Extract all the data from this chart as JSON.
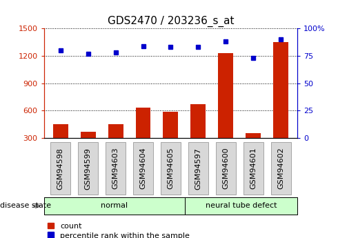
{
  "title": "GDS2470 / 203236_s_at",
  "samples": [
    "GSM94598",
    "GSM94599",
    "GSM94603",
    "GSM94604",
    "GSM94605",
    "GSM94597",
    "GSM94600",
    "GSM94601",
    "GSM94602"
  ],
  "counts": [
    450,
    370,
    450,
    630,
    590,
    670,
    1230,
    350,
    1350
  ],
  "percentiles": [
    80,
    77,
    78,
    84,
    83,
    83,
    88,
    73,
    90
  ],
  "groups": [
    {
      "label": "normal",
      "start": 0,
      "end": 5
    },
    {
      "label": "neural tube defect",
      "start": 5,
      "end": 9
    }
  ],
  "bar_color": "#cc2200",
  "dot_color": "#0000cc",
  "left_ylim": [
    300,
    1500
  ],
  "left_yticks": [
    300,
    600,
    900,
    1200,
    1500
  ],
  "right_ylim": [
    0,
    100
  ],
  "right_yticks": [
    0,
    25,
    50,
    75,
    100
  ],
  "right_yticklabels": [
    "0",
    "25",
    "50",
    "75",
    "100%"
  ],
  "group_bg_color": "#ccffcc",
  "xtick_bg_color": "#d8d8d8",
  "legend_count_label": "count",
  "legend_pct_label": "percentile rank within the sample",
  "disease_state_label": "disease state",
  "title_fontsize": 11,
  "axis_fontsize": 8,
  "label_fontsize": 8
}
